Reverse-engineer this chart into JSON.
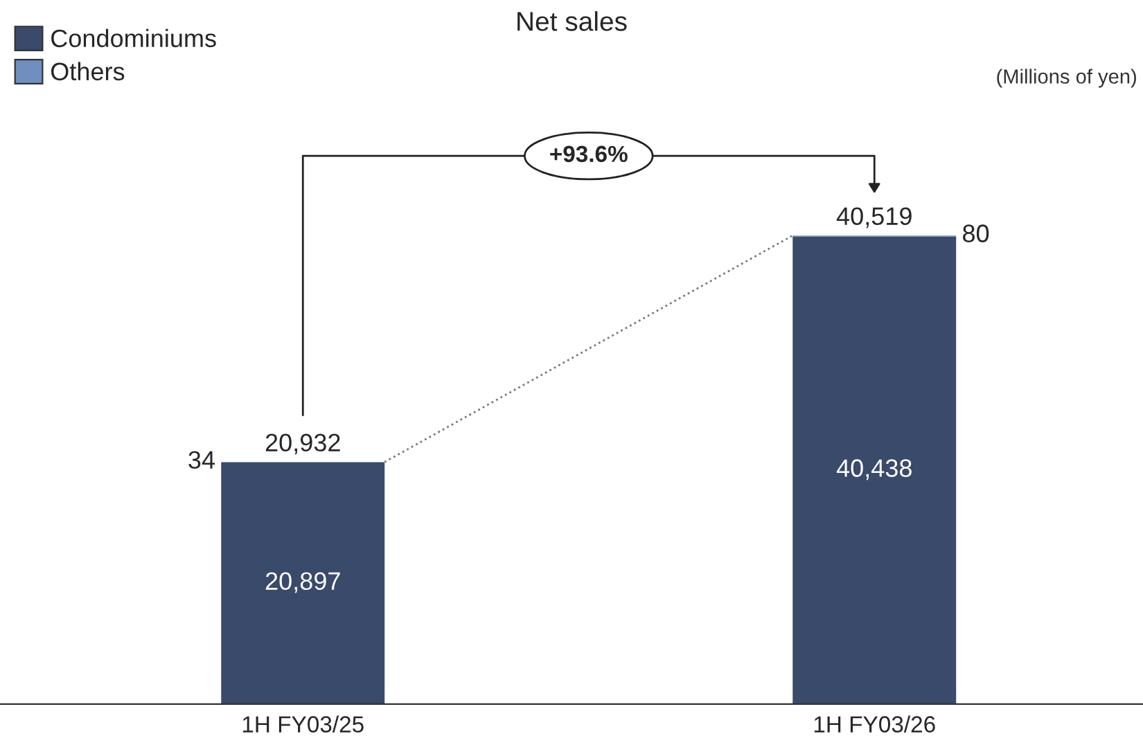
{
  "chart_data": {
    "type": "bar",
    "title": "Net sales",
    "stacked": true,
    "legend": "top left",
    "categories": [
      "1H FY03/25",
      "1H FY03/26"
    ],
    "series": [
      {
        "name": "Condominiums",
        "color": "#394a6b",
        "values": [
          20897,
          40438
        ],
        "value_labels": [
          "20,897",
          "40,438"
        ]
      },
      {
        "name": "Others",
        "color": "#6e8fc0",
        "values": [
          34,
          80
        ],
        "value_labels": [
          "34",
          "80"
        ]
      }
    ],
    "totals": [
      "20,932",
      "40,519"
    ],
    "annotations": [
      "(Millions of yen)",
      "+93.6%"
    ]
  }
}
